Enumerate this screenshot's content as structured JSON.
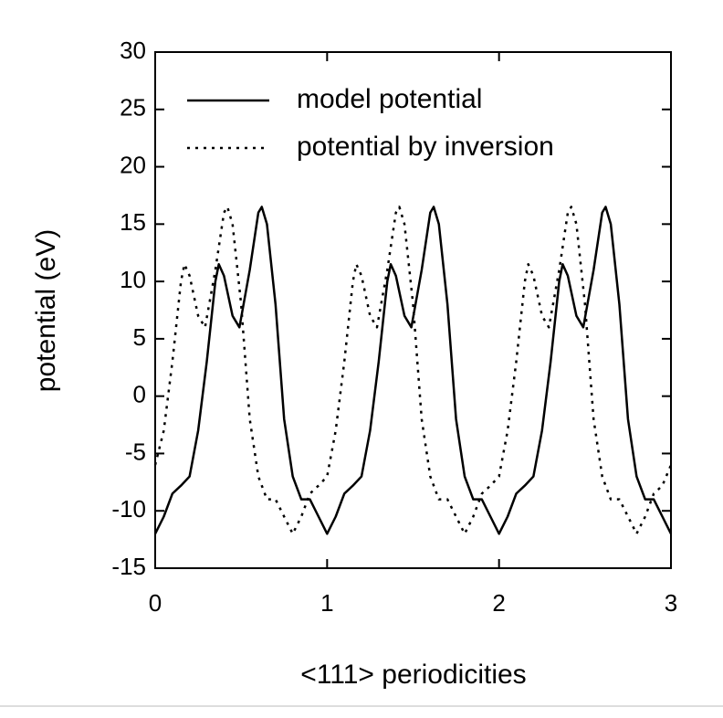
{
  "chart_data": {
    "type": "line",
    "xlabel": "<111> periodicities",
    "ylabel": "potential (eV)",
    "xlim": [
      0,
      3
    ],
    "xticks": [
      0,
      1,
      2,
      3
    ],
    "ylim": [
      -15,
      30
    ],
    "yticks": [
      -15,
      -10,
      -5,
      0,
      5,
      10,
      15,
      20,
      25,
      30
    ],
    "legend": "upper left",
    "series": [
      {
        "name": "model potential",
        "color": "#000000",
        "style": "solid",
        "x": [
          0,
          0.05,
          0.1,
          0.15,
          0.2,
          0.25,
          0.3,
          0.35,
          0.37,
          0.4,
          0.45,
          0.49,
          0.55,
          0.6,
          0.62,
          0.65,
          0.7,
          0.75,
          0.8,
          0.85,
          0.9,
          0.95,
          1,
          1.05,
          1.1,
          1.15,
          1.2,
          1.25,
          1.3,
          1.35,
          1.37,
          1.4,
          1.45,
          1.49,
          1.55,
          1.6,
          1.62,
          1.65,
          1.7,
          1.75,
          1.8,
          1.85,
          1.9,
          1.95,
          2,
          2.05,
          2.1,
          2.15,
          2.2,
          2.25,
          2.3,
          2.35,
          2.37,
          2.4,
          2.45,
          2.49,
          2.55,
          2.6,
          2.62,
          2.65,
          2.7,
          2.75,
          2.8,
          2.85,
          2.9,
          2.95,
          3
        ],
        "values": [
          -12,
          -10.5,
          -8.5,
          -7.8,
          -7,
          -3,
          3,
          10,
          11.5,
          10.5,
          7,
          6,
          11,
          16,
          16.5,
          15,
          8,
          -2,
          -7,
          -9,
          -9,
          -10.5,
          -12,
          -10.5,
          -8.5,
          -7.8,
          -7,
          -3,
          3,
          10,
          11.5,
          10.5,
          7,
          6,
          11,
          16,
          16.5,
          15,
          8,
          -2,
          -7,
          -9,
          -9,
          -10.5,
          -12,
          -10.5,
          -8.5,
          -7.8,
          -7,
          -3,
          3,
          10,
          11.5,
          10.5,
          7,
          6,
          11,
          16,
          16.5,
          15,
          8,
          -2,
          -7,
          -9,
          -9,
          -10.5,
          -12
        ]
      },
      {
        "name": "potential by inversion",
        "color": "#000000",
        "style": "dotted",
        "x": [
          0,
          0.05,
          0.1,
          0.15,
          0.17,
          0.2,
          0.25,
          0.29,
          0.35,
          0.4,
          0.42,
          0.45,
          0.5,
          0.55,
          0.6,
          0.65,
          0.7,
          0.75,
          0.8,
          0.85,
          0.9,
          0.95,
          1,
          1.05,
          1.1,
          1.15,
          1.17,
          1.2,
          1.25,
          1.29,
          1.35,
          1.4,
          1.42,
          1.45,
          1.5,
          1.55,
          1.6,
          1.65,
          1.7,
          1.75,
          1.8,
          1.85,
          1.9,
          1.95,
          2,
          2.05,
          2.1,
          2.15,
          2.17,
          2.2,
          2.25,
          2.29,
          2.35,
          2.4,
          2.42,
          2.45,
          2.5,
          2.55,
          2.6,
          2.65,
          2.7,
          2.75,
          2.8,
          2.85,
          2.9,
          2.95,
          3
        ],
        "values": [
          -6,
          -3,
          3,
          10,
          11.5,
          10.5,
          7,
          6,
          11,
          16,
          16.5,
          15,
          8,
          -2,
          -7,
          -9,
          -9,
          -10.5,
          -12,
          -10.5,
          -8.5,
          -7.8,
          -7,
          -3,
          3,
          10,
          11.5,
          10.5,
          7,
          6,
          11,
          16,
          16.5,
          15,
          8,
          -2,
          -7,
          -9,
          -9,
          -10.5,
          -12,
          -10.5,
          -8.5,
          -7.8,
          -7,
          -3,
          3,
          10,
          11.5,
          10.5,
          7,
          6,
          11,
          16,
          16.5,
          15,
          8,
          -2,
          -7,
          -9,
          -9,
          -10.5,
          -12,
          -10.5,
          -8.5,
          -7.8,
          -6
        ]
      }
    ]
  }
}
